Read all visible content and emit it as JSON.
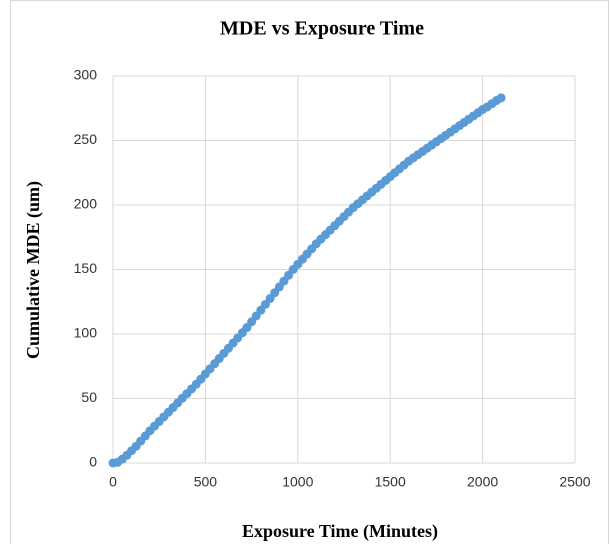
{
  "chart_data": {
    "type": "scatter",
    "title": "MDE vs Exposure  Time",
    "x_label": "Exposure Time (Minutes)",
    "y_label": "Cumulative MDE (um)",
    "x": [
      0,
      25,
      50,
      75,
      100,
      125,
      150,
      175,
      200,
      225,
      250,
      275,
      300,
      325,
      350,
      375,
      400,
      425,
      450,
      475,
      500,
      525,
      550,
      575,
      600,
      625,
      650,
      675,
      700,
      725,
      750,
      775,
      800,
      825,
      850,
      875,
      900,
      925,
      950,
      975,
      1000,
      1025,
      1050,
      1075,
      1100,
      1125,
      1150,
      1175,
      1200,
      1225,
      1250,
      1275,
      1300,
      1325,
      1350,
      1375,
      1400,
      1425,
      1450,
      1475,
      1500,
      1525,
      1550,
      1575,
      1600,
      1625,
      1650,
      1675,
      1700,
      1725,
      1750,
      1775,
      1800,
      1825,
      1850,
      1875,
      1900,
      1925,
      1950,
      1975,
      2000,
      2025,
      2050,
      2075,
      2100
    ],
    "values": [
      0,
      0.5,
      3,
      6,
      9.5,
      13,
      17,
      21,
      25,
      28.6,
      32.2,
      35.8,
      39.4,
      43,
      46.6,
      50.2,
      53.8,
      57.4,
      61,
      65,
      69,
      73,
      77,
      81,
      85,
      89,
      93,
      97,
      101,
      105,
      109.5,
      114,
      118.5,
      123,
      127.5,
      132,
      136.5,
      141,
      145.5,
      150,
      154,
      158,
      162,
      166,
      170,
      173.5,
      177,
      180.5,
      184,
      187.5,
      191,
      194.5,
      198,
      201,
      204,
      207,
      210,
      213,
      216,
      219,
      222,
      225,
      228,
      231,
      234,
      236.5,
      239,
      241.5,
      244,
      246.5,
      249,
      251.5,
      254,
      256.5,
      259,
      261.5,
      264,
      266.5,
      269,
      271.5,
      274,
      276,
      278.5,
      281,
      283
    ],
    "color": "#5b9bd5",
    "xlim": [
      0,
      2500
    ],
    "xticks": [
      0,
      500,
      1000,
      1500,
      2000,
      2500
    ],
    "ylim": [
      0,
      300
    ],
    "yticks": [
      0,
      50,
      100,
      150,
      200,
      250,
      300
    ],
    "grid": true
  }
}
